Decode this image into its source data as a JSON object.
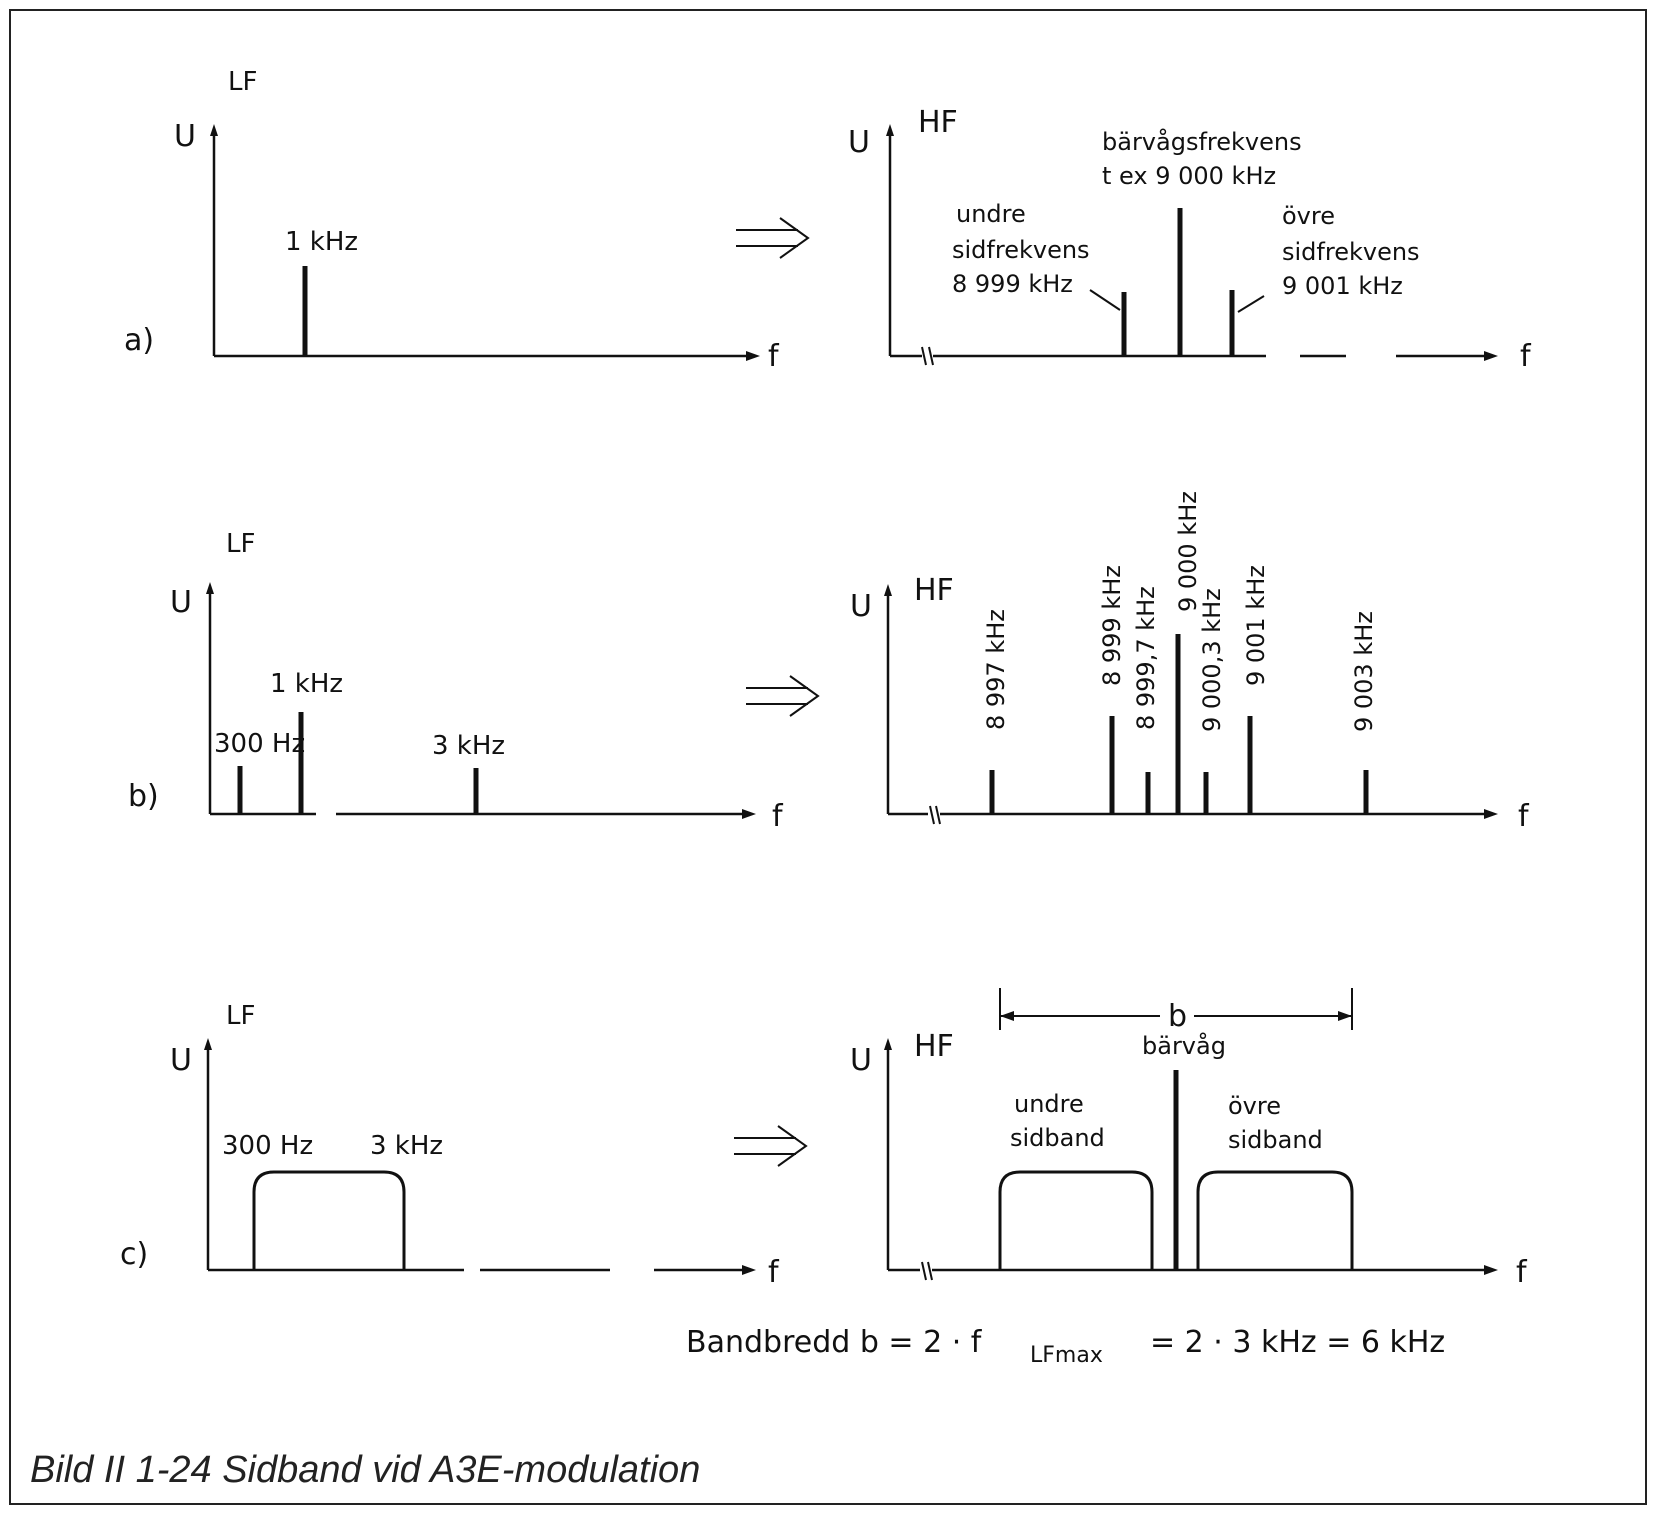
{
  "caption": "Bild II 1-24 Sidband vid A3E-modulation",
  "formula": {
    "prefix": "Bandbredd b = 2 · f",
    "subscript": "LFmax",
    "suffix": "= 2 · 3 kHz = 6 kHz"
  },
  "axis_labels": {
    "amplitude": "U",
    "frequency": "f",
    "lf": "LF",
    "hf": "HF"
  },
  "row_a": {
    "marker": "a)",
    "lf_line_label": "1 kHz",
    "carrier_label_1": "bärvågsfrekvens",
    "carrier_label_2": "t ex 9 000 kHz",
    "lower_label_1": "undre",
    "lower_label_2": "sidfrekvens",
    "lower_label_3": "8 999 kHz",
    "upper_label_1": "övre",
    "upper_label_2": "sidfrekvens",
    "upper_label_3": "9 001 kHz"
  },
  "row_b": {
    "marker": "b)",
    "lf_labels": [
      "300 Hz",
      "1 kHz",
      "3 kHz"
    ],
    "hf_labels": [
      "8 997 kHz",
      "8 999 kHz",
      "8 999,7 kHz",
      "9 000 kHz",
      "9 000,3 kHz",
      "9 001 kHz",
      "9 003 kHz"
    ]
  },
  "row_c": {
    "marker": "c)",
    "lf_low": "300 Hz",
    "lf_high": "3 kHz",
    "bandwidth_symbol": "b",
    "carrier_label": "bärvåg",
    "lower_band_1": "undre",
    "lower_band_2": "sidband",
    "upper_band_1": "övre",
    "upper_band_2": "sidband"
  }
}
